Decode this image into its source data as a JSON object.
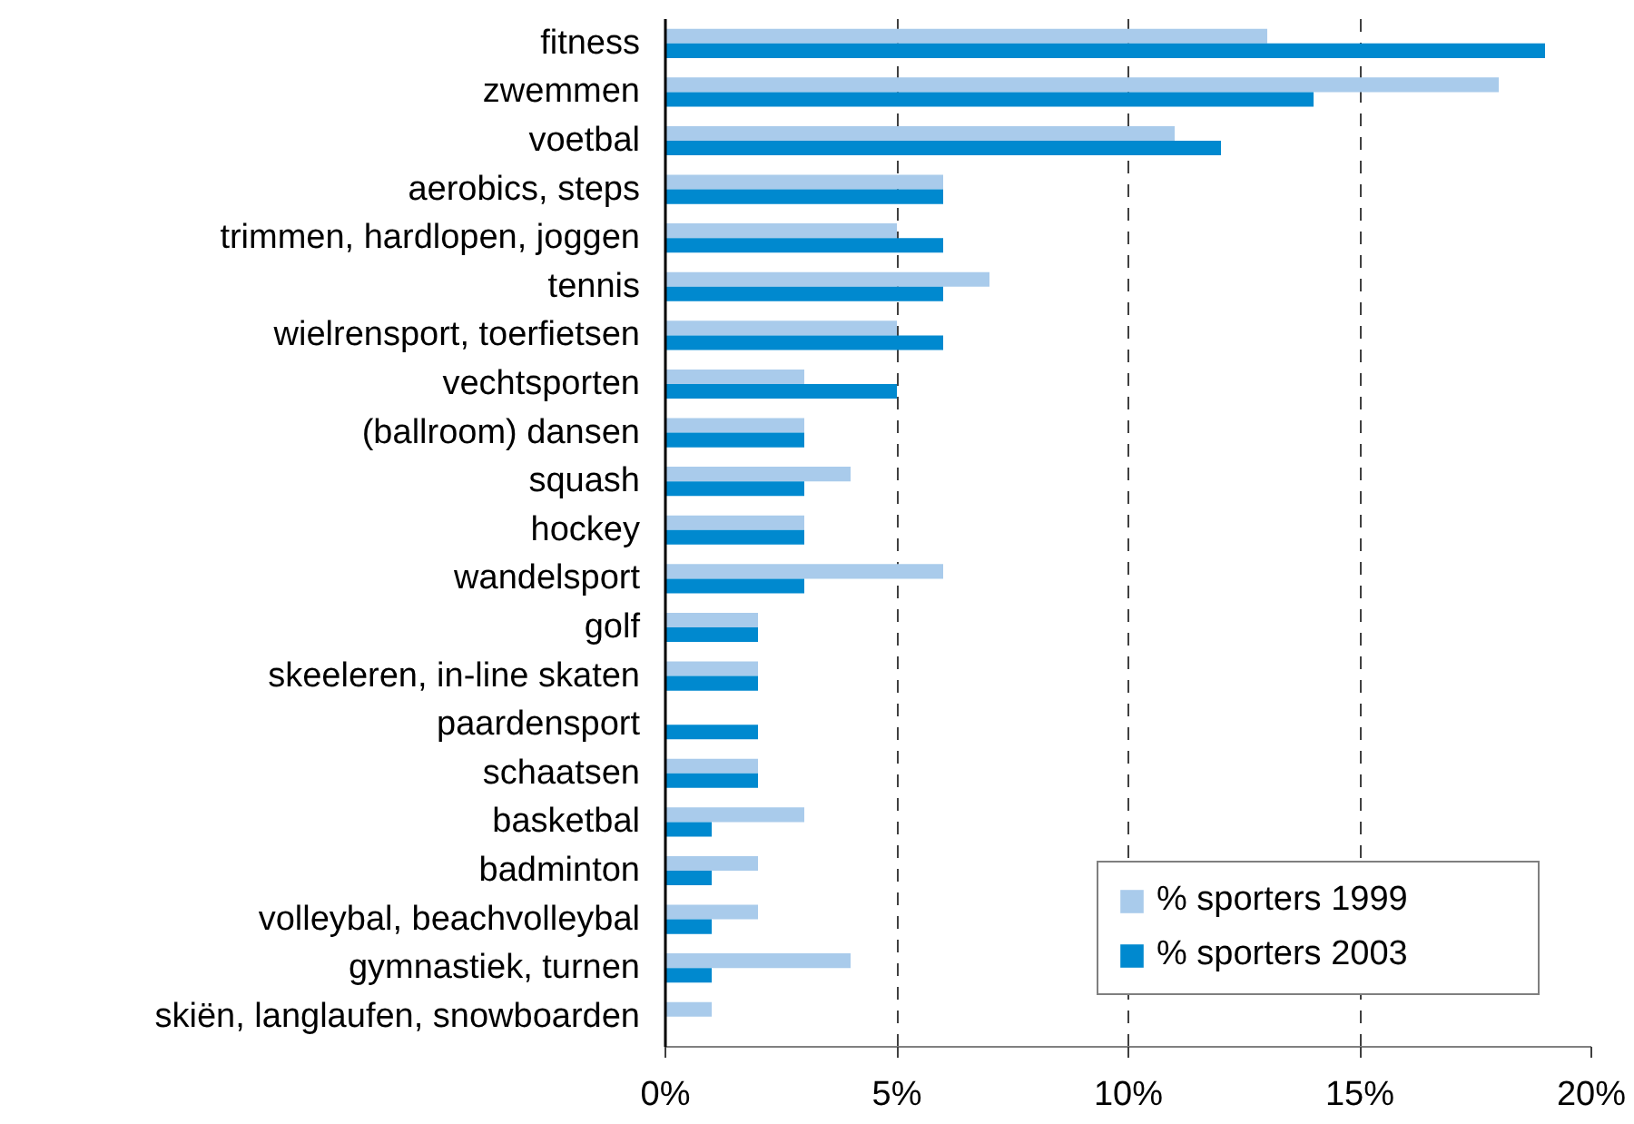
{
  "chart_data": {
    "type": "bar",
    "orientation": "horizontal",
    "categories": [
      "fitness",
      "zwemmen",
      "voetbal",
      "aerobics, steps",
      "trimmen, hardlopen, joggen",
      "tennis",
      "wielrensport, toerfietsen",
      "vechtsporten",
      "(ballroom) dansen",
      "squash",
      "hockey",
      "wandelsport",
      "golf",
      "skeeleren, in-line skaten",
      "paardensport",
      "schaatsen",
      "basketbal",
      "badminton",
      "volleybal, beachvolleybal",
      "gymnastiek, turnen",
      "skiën, langlaufen, snowboarden"
    ],
    "series": [
      {
        "name": "% sporters 1999",
        "color": "#a9cbeb",
        "values": [
          13,
          18,
          11,
          6,
          5,
          7,
          5,
          3,
          3,
          4,
          3,
          6,
          2,
          2,
          null,
          2,
          3,
          2,
          2,
          4,
          1
        ]
      },
      {
        "name": "% sporters 2003",
        "color": "#0089cf",
        "values": [
          19,
          14,
          12,
          6,
          6,
          6,
          6,
          5,
          3,
          3,
          3,
          3,
          2,
          2,
          2,
          2,
          1,
          1,
          1,
          1,
          null
        ]
      }
    ],
    "xlim": [
      0,
      20
    ],
    "xticks": [
      {
        "value": 0,
        "label": "0%"
      },
      {
        "value": 5,
        "label": "5%"
      },
      {
        "value": 10,
        "label": "10%"
      },
      {
        "value": 15,
        "label": "15%"
      },
      {
        "value": 20,
        "label": "20%"
      }
    ],
    "grid": "x",
    "legend": "bottom right"
  }
}
